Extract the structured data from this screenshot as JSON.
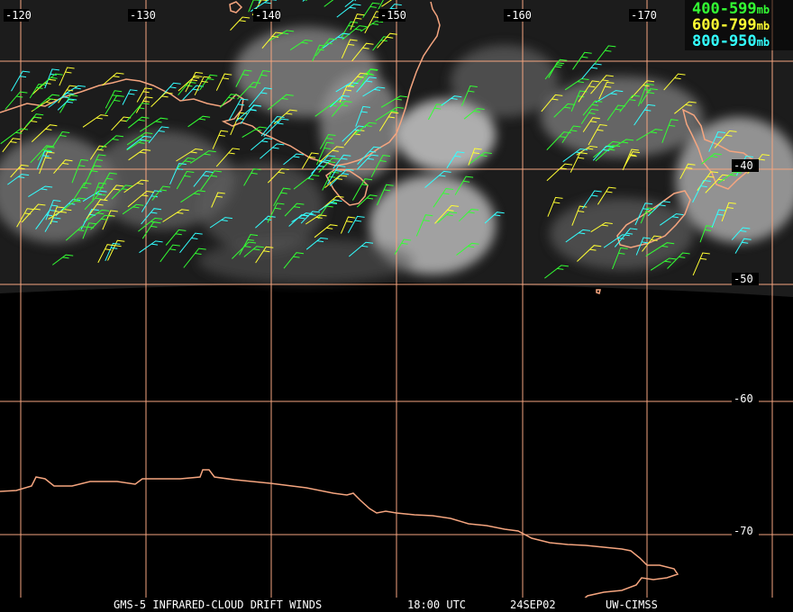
{
  "map": {
    "longitude_labels": [
      "-120",
      "-130",
      "-140",
      "-150",
      "-160",
      "-170"
    ],
    "latitude_labels": [
      "-40",
      "-50",
      "-60",
      "-70"
    ]
  },
  "legend": [
    {
      "range": "400-599",
      "unit": "mb",
      "color": "#33ff33"
    },
    {
      "range": "600-799",
      "unit": "mb",
      "color": "#ffff33"
    },
    {
      "range": "800-950",
      "unit": "mb",
      "color": "#33ffff"
    }
  ],
  "footer": {
    "product": "GMS-5 INFRARED-CLOUD DRIFT WINDS",
    "time": "18:00 UTC",
    "date": "24SEP02",
    "source": "UW-CIMSS"
  },
  "colors": {
    "grid": "#f5a57f",
    "coastline": "#f5a57f",
    "background": "#000000",
    "cloud_imagery": "#8a8a8a"
  }
}
